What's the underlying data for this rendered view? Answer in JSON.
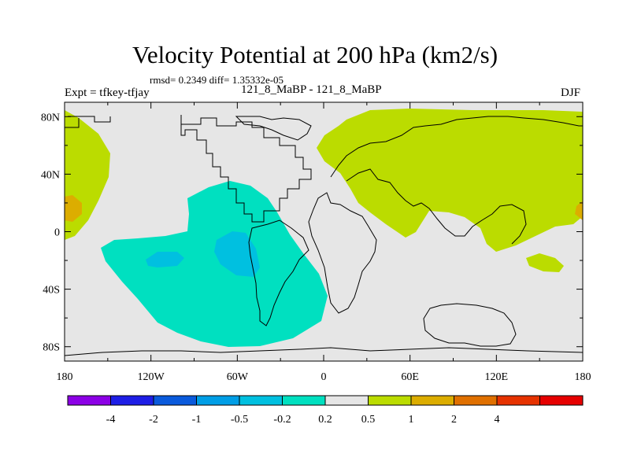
{
  "title": "Velocity Potential at 200 hPa (km2/s)",
  "stats": "rmsd= 0.2349  diff= 1.35332e-05",
  "left_label": "Expt = tfkey-tfjay",
  "center_label": "121_8_MaBP - 121_8_MaBP",
  "right_label": "DJF",
  "colors": {
    "background": "#e6e6e6",
    "pos_weak": "#bbdc00",
    "pos_mid": "#dcad00",
    "neg_weak": "#00e0c0",
    "neg_mid": "#00c0e0",
    "neg_strong": "#009ee6"
  },
  "chart_data": {
    "type": "heatmap",
    "x_ticks": [
      "180",
      "120W",
      "60W",
      "0",
      "60E",
      "120E",
      "180"
    ],
    "y_ticks": [
      "80N",
      "40N",
      "0",
      "40S",
      "80S"
    ],
    "xlim": [
      -180,
      180
    ],
    "ylim": [
      -90,
      90
    ],
    "colorbar": {
      "labels": [
        "-4",
        "-2",
        "-1",
        "-0.5",
        "-0.2",
        "0.2",
        "0.5",
        "1",
        "2",
        "4"
      ],
      "colors": [
        "#8c00e6",
        "#1e1ee6",
        "#0a5adc",
        "#009ee6",
        "#00c0e0",
        "#00e0c0",
        "#e6e6e6",
        "#bbdc00",
        "#dcad00",
        "#e07000",
        "#e63200",
        "#e60000"
      ]
    }
  }
}
